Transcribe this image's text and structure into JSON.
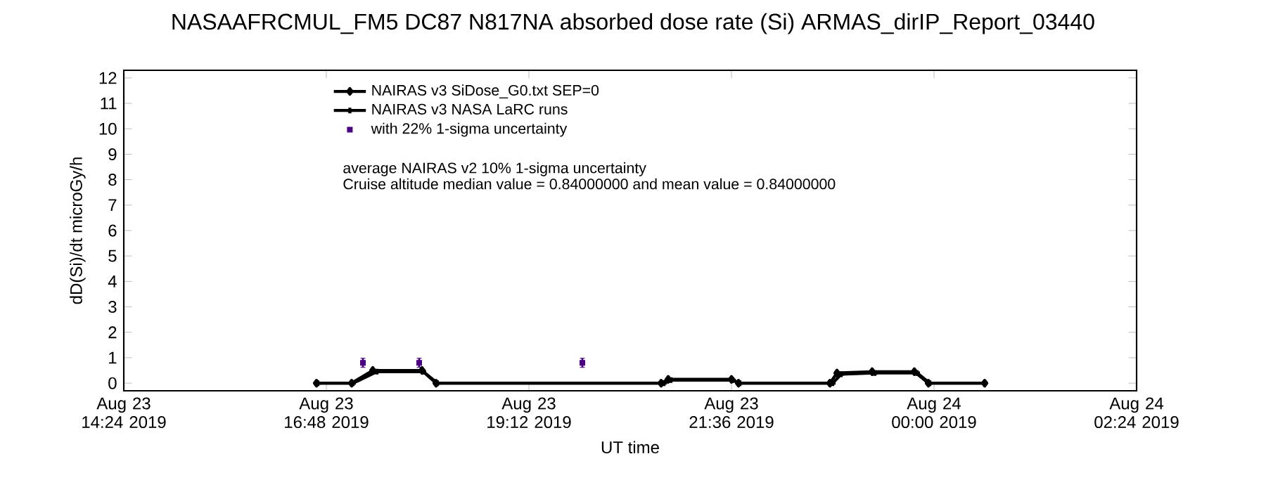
{
  "chart_data": {
    "type": "line",
    "title": "NASAAFRCMUL_FM5 DC87 N817NA absorbed dose rate (Si) ARMAS_dirIP_Report_03440",
    "xlabel": "UT time",
    "ylabel": "dD(Si)/dt microGy/h",
    "xlim": [
      "2019-08-23T14:24",
      "2019-08-24T02:24"
    ],
    "ylim": [
      -0.3,
      12.3
    ],
    "xticks": [
      {
        "value": "2019-08-23T14:24",
        "label": "Aug 23 14:24 2019"
      },
      {
        "value": "2019-08-23T16:48",
        "label": "Aug 23 16:48 2019"
      },
      {
        "value": "2019-08-23T19:12",
        "label": "Aug 23 19:12 2019"
      },
      {
        "value": "2019-08-23T21:36",
        "label": "Aug 23 21:36 2019"
      },
      {
        "value": "2019-08-24T00:00",
        "label": "Aug 24 00:00 2019"
      },
      {
        "value": "2019-08-24T02:24",
        "label": "Aug 24 02:24 2019"
      }
    ],
    "yticks": [
      0,
      1,
      2,
      3,
      4,
      5,
      6,
      7,
      8,
      9,
      10,
      11,
      12
    ],
    "legend": "top left",
    "series": [
      {
        "name": "NAIRAS v3 SiDose_G0.txt SEP=0",
        "marker": "diamond",
        "color": "#000000",
        "x": [
          "2019-08-23T16:41",
          "2019-08-23T17:06",
          "2019-08-23T17:21",
          "2019-08-23T17:56",
          "2019-08-23T18:06",
          "2019-08-23T20:46",
          "2019-08-23T20:51",
          "2019-08-23T21:36",
          "2019-08-23T21:41",
          "2019-08-23T22:46",
          "2019-08-23T22:51",
          "2019-08-23T23:16",
          "2019-08-23T23:46",
          "2019-08-23T23:56",
          "2019-08-24T00:36"
        ],
        "values": [
          0,
          0,
          0.5,
          0.5,
          0,
          0,
          0.15,
          0.15,
          0,
          0,
          0.4,
          0.45,
          0.45,
          0,
          0
        ]
      },
      {
        "name": "NAIRAS v3 NASA LaRC runs",
        "marker": "cross",
        "color": "#000000",
        "x": [
          "2019-08-23T16:42",
          "2019-08-23T17:07",
          "2019-08-23T17:24",
          "2019-08-23T17:57",
          "2019-08-23T18:07",
          "2019-08-23T20:48",
          "2019-08-23T20:53",
          "2019-08-23T21:37",
          "2019-08-23T21:42",
          "2019-08-23T22:48",
          "2019-08-23T22:54",
          "2019-08-23T23:18",
          "2019-08-23T23:48",
          "2019-08-23T23:57",
          "2019-08-24T00:36"
        ],
        "values": [
          0,
          0,
          0.45,
          0.45,
          0,
          0,
          0.12,
          0.12,
          0,
          0,
          0.35,
          0.4,
          0.4,
          0,
          0
        ]
      },
      {
        "name": "with 22% 1-sigma uncertainty",
        "type": "scatter",
        "marker": "square",
        "color": "#4b0082",
        "x": [
          "2019-08-23T17:14",
          "2019-08-23T17:54",
          "2019-08-23T19:50"
        ],
        "values": [
          0.8,
          0.8,
          0.8
        ],
        "errors": [
          0.18,
          0.18,
          0.18
        ]
      }
    ],
    "annotations": [
      "average NAIRAS v2 10% 1-sigma uncertainty",
      "Cruise altitude median value = 0.84000000 and mean value = 0.84000000"
    ]
  }
}
